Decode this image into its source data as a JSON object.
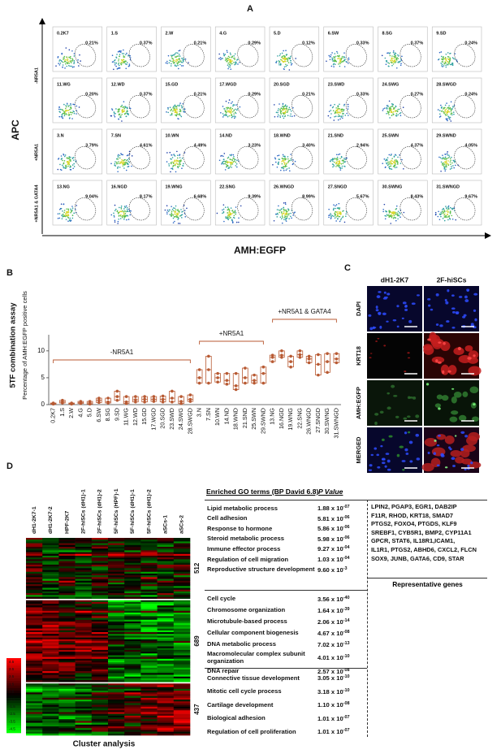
{
  "panel_a": {
    "label": "A",
    "y_label": "APC",
    "x_label": "AMH:EGFP",
    "row_labels": [
      "-NR5A1",
      "+NR5A1",
      "+NR5A1 & GATA4"
    ],
    "plots": [
      {
        "name": "0.2K7",
        "percent": "0.21%"
      },
      {
        "name": "1.S",
        "percent": "0.37%"
      },
      {
        "name": "2.W",
        "percent": "0.21%"
      },
      {
        "name": "4.G",
        "percent": "0.29%"
      },
      {
        "name": "5.D",
        "percent": "0.12%"
      },
      {
        "name": "6.SW",
        "percent": "0.33%"
      },
      {
        "name": "8.SG",
        "percent": "0.37%"
      },
      {
        "name": "9.SD",
        "percent": "0.24%"
      },
      {
        "name": "11.WG",
        "percent": "0.20%"
      },
      {
        "name": "12.WD",
        "percent": "0.37%"
      },
      {
        "name": "15.GD",
        "percent": "0.21%"
      },
      {
        "name": "17.WGD",
        "percent": "0.29%"
      },
      {
        "name": "20.SGD",
        "percent": "0.21%"
      },
      {
        "name": "23.SWD",
        "percent": "0.33%"
      },
      {
        "name": "24.SWG",
        "percent": "0.27%"
      },
      {
        "name": "28.SWGD",
        "percent": "0.24%"
      },
      {
        "name": "3.N",
        "percent": "3.79%"
      },
      {
        "name": "7.SN",
        "percent": "4.61%"
      },
      {
        "name": "10.WN",
        "percent": "4.49%"
      },
      {
        "name": "14.ND",
        "percent": "3.23%"
      },
      {
        "name": "18.WND",
        "percent": "3.40%"
      },
      {
        "name": "21.SND",
        "percent": "2.94%"
      },
      {
        "name": "25.SWN",
        "percent": "4.37%"
      },
      {
        "name": "29.SWND",
        "percent": "4.05%"
      },
      {
        "name": "13.NG",
        "percent": "9.04%"
      },
      {
        "name": "16.NGD",
        "percent": "8.17%"
      },
      {
        "name": "19.WNG",
        "percent": "6.68%"
      },
      {
        "name": "22.SNG",
        "percent": "9.39%"
      },
      {
        "name": "26.WNGD",
        "percent": "8.99%"
      },
      {
        "name": "27.SNGD",
        "percent": "5.67%"
      },
      {
        "name": "30.SWNG",
        "percent": "8.43%"
      },
      {
        "name": "31.SWNGD",
        "percent": "9.67%"
      }
    ]
  },
  "chart_data": {
    "type": "box",
    "label": "B",
    "title": "5TF combination assay",
    "y_label": "Percentage of AMH:EGFP positive cells",
    "categories": [
      "0.2K7",
      "1.S",
      "2.W",
      "4.G",
      "5.D",
      "6.SW",
      "8.SG",
      "9.SD",
      "11.WG",
      "12.WD",
      "15.GD",
      "17.WGD",
      "20.SGD",
      "23.SWD",
      "24.SWG",
      "28.SWGD",
      "3.N",
      "7.SN",
      "10.WN",
      "14.ND",
      "18.WND",
      "21.SND",
      "25.SWN",
      "29.SWND",
      "13.NG",
      "16.NGD",
      "19.WNG",
      "22.SNG",
      "26.WNGD",
      "27.SNGD",
      "30.SWNG",
      "31.SWNGD"
    ],
    "min": [
      0.1,
      0.3,
      0.1,
      0.2,
      0.1,
      0.4,
      0.3,
      0.8,
      0.2,
      0.5,
      0.5,
      0.6,
      0.5,
      0.5,
      0.2,
      0.6,
      4,
      4,
      4.2,
      3.8,
      2.8,
      4,
      4,
      4,
      8,
      8.8,
      7,
      8.8,
      7.8,
      5.5,
      6,
      7.8
    ],
    "median": [
      0.2,
      0.5,
      0.2,
      0.4,
      0.3,
      0.8,
      0.5,
      1.5,
      0.5,
      0.9,
      1,
      1,
      1,
      1.2,
      0.6,
      1,
      5,
      6.5,
      5,
      4.5,
      3.5,
      5,
      4.5,
      5.8,
      8.8,
      9.2,
      8,
      9.3,
      8.5,
      7.5,
      8,
      8.5
    ],
    "max": [
      0.3,
      0.8,
      0.3,
      0.6,
      0.6,
      1.2,
      1.2,
      2.5,
      1.5,
      1.5,
      1.5,
      1.5,
      1.6,
      2.5,
      1.5,
      1.8,
      6.5,
      9,
      5.8,
      5.8,
      5.8,
      6.8,
      5.5,
      7,
      9.2,
      10,
      9,
      10,
      9,
      9.3,
      9.5,
      9.5
    ],
    "color": "#b85a33",
    "ylim": [
      0,
      13
    ],
    "yticks": [
      0,
      5,
      10
    ],
    "groups": [
      "-NR5A1",
      "+NR5A1",
      "+NR5A1 & GATA4"
    ]
  },
  "panel_c": {
    "label": "C",
    "columns": [
      "dH1-2K7",
      "2F-hiSCs"
    ],
    "rows": [
      "DAPI",
      "KRT18",
      "AMH:EGFP",
      "MERGED"
    ]
  },
  "panel_d": {
    "label": "D",
    "columns": [
      "dH1-2K7-1",
      "dH1-2K7-2",
      "HPF-2K7",
      "2F-hiSCs (dH1)-1",
      "2F-hiSCs (dH1)-2",
      "5F-hiSCs (HPF)-1",
      "5F-hiSCs (dH1)-1",
      "5F-hiSCs (dH1)-2",
      "aSCs-1",
      "aSCs-2"
    ],
    "clusters": [
      512,
      689,
      437
    ],
    "scale": [
      4.5,
      3.5,
      2.5,
      1.5,
      0.5,
      -0.5,
      -1.5,
      -2.5,
      -3.5,
      -4.5
    ],
    "caption": "Cluster analysis",
    "go_header": "Enriched GO terms (BP David 6.8)",
    "p_header": "P Value",
    "genes_header": "Representative genes",
    "groups": [
      {
        "terms": [
          {
            "term": "Lipid metabolic process",
            "p": "1.88 x 10",
            "exp": "-07"
          },
          {
            "term": "Cell adhesion",
            "p": "5.81 x 10",
            "exp": "-06"
          },
          {
            "term": "Response to hormone",
            "p": "5.86 x 10",
            "exp": "-06"
          },
          {
            "term": "Steroid metabolic process",
            "p": "5.98 x 10",
            "exp": "-06"
          },
          {
            "term": "Immune effector process",
            "p": "9.27 x 10",
            "exp": "-04"
          },
          {
            "term": "Regulation of cell migration",
            "p": "1.03 x 10",
            "exp": "-04"
          },
          {
            "term": "Reproductive structure development",
            "p": "9.60 x 10",
            "exp": "-3"
          }
        ],
        "genes": [
          "LPIN2, PGAP3, EGR1, DAB2IP",
          "F11R, RHOD, KRT18, SMAD7",
          "PTGS2, FOXO4, PTGDS, KLF9",
          "SREBF1, CYB5R1, BMP2, CYP11A1",
          "GPCR, STAT6, IL18R1,ICAM1,",
          "IL1R1, PTGS2, ABHD6, CXCL2, FLCN",
          "SOX9, JUNB, GATA6, CD9, STAR"
        ]
      },
      {
        "terms": [
          {
            "term": "Cell cycle",
            "p": "3.56 x 10",
            "exp": "-40"
          },
          {
            "term": "Chromosome organization",
            "p": "1.64 x 10",
            "exp": "-39"
          },
          {
            "term": "Microtubule-based process",
            "p": "2.06 x 10",
            "exp": "-14"
          },
          {
            "term": "Cellular component biogenesis",
            "p": "4.67 x 10",
            "exp": "-08"
          },
          {
            "term": "DNA metabolic process",
            "p": "7.02 x 10",
            "exp": "-13"
          },
          {
            "term": "Macromolecular complex subunit organization",
            "p": "4.01 x 10",
            "exp": "-10"
          },
          {
            "term": "DNA repair",
            "p": "2.57 x 10",
            "exp": "-08"
          }
        ]
      },
      {
        "terms": [
          {
            "term": "Connective tissue development",
            "p": "3.05 x 10",
            "exp": "-10"
          },
          {
            "term": "Mitotic cell cycle process",
            "p": "3.18 x 10",
            "exp": "-10"
          },
          {
            "term": "Cartilage development",
            "p": "1.10 x 10",
            "exp": "-08"
          },
          {
            "term": "Biological adhesion",
            "p": "1.01 x 10",
            "exp": "-07"
          },
          {
            "term": "Regulation of cell proliferation",
            "p": "1.01 x 10",
            "exp": "-07"
          }
        ]
      }
    ]
  }
}
